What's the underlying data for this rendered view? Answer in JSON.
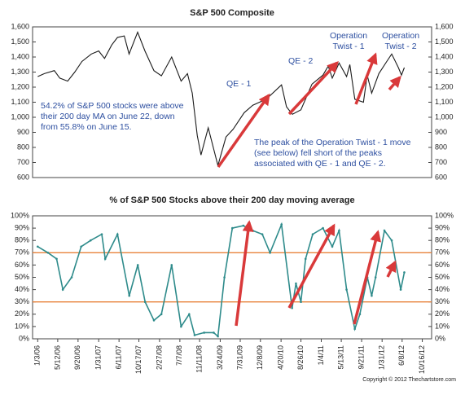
{
  "chart_data": [
    {
      "type": "line",
      "title": "S&P 500 Composite",
      "x": [
        "1/3/06",
        "2/15/06",
        "4/20/06",
        "5/25/06",
        "7/15/06",
        "8/30/06",
        "10/15/06",
        "12/15/06",
        "1/31/07",
        "3/10/07",
        "4/25/07",
        "6/1/07",
        "7/15/07",
        "8/15/07",
        "10/9/07",
        "11/25/07",
        "1/22/08",
        "3/10/08",
        "5/15/08",
        "7/15/08",
        "8/25/08",
        "9/25/08",
        "10/27/08",
        "11/20/08",
        "1/6/09",
        "3/9/09",
        "4/30/09",
        "6/15/09",
        "8/25/09",
        "10/20/09",
        "1/15/10",
        "4/23/10",
        "5/25/10",
        "7/2/10",
        "8/26/10",
        "11/5/10",
        "1/15/11",
        "2/18/11",
        "3/16/11",
        "4/29/11",
        "6/16/11",
        "7/7/11",
        "8/8/11",
        "10/3/11",
        "10/27/11",
        "11/25/11",
        "1/10/12",
        "3/1/12",
        "4/2/12",
        "5/15/12",
        "6/4/12",
        "6/22/12"
      ],
      "series": [
        {
          "name": "S&P 500",
          "color": "#1a1a1a",
          "values": [
            1270,
            1290,
            1310,
            1260,
            1240,
            1300,
            1370,
            1420,
            1440,
            1390,
            1480,
            1530,
            1540,
            1420,
            1565,
            1440,
            1310,
            1275,
            1400,
            1240,
            1290,
            1160,
            880,
            750,
            930,
            680,
            870,
            920,
            1030,
            1080,
            1120,
            1215,
            1070,
            1020,
            1050,
            1220,
            1280,
            1340,
            1260,
            1360,
            1270,
            1350,
            1120,
            1100,
            1280,
            1160,
            1290,
            1370,
            1420,
            1330,
            1280,
            1330
          ]
        }
      ],
      "ylim": [
        600,
        1600
      ],
      "yticks": [
        {
          "value": 600,
          "label": "600"
        },
        {
          "value": 700,
          "label": "700"
        },
        {
          "value": 800,
          "label": "800"
        },
        {
          "value": 900,
          "label": "900"
        },
        {
          "value": 1000,
          "label": "1,000"
        },
        {
          "value": 1100,
          "label": "1,100"
        },
        {
          "value": 1200,
          "label": "1,200"
        },
        {
          "value": 1300,
          "label": "1,300"
        },
        {
          "value": 1400,
          "label": "1,400"
        },
        {
          "value": 1500,
          "label": "1,500"
        },
        {
          "value": 1600,
          "label": "1,600"
        }
      ],
      "xlim": [
        "12/1/05",
        "12/15/12"
      ],
      "annotations": [
        {
          "lines": [
            "QE - 1"
          ]
        },
        {
          "lines": [
            "QE - 2"
          ]
        },
        {
          "lines": [
            "Operation",
            "Twist - 1"
          ]
        },
        {
          "lines": [
            "Operation",
            "Twist - 2"
          ]
        },
        {
          "lines": [
            "54.2% of S&P 500 stocks were above",
            "their 200 day MA on June 22, down",
            "from 55.8% on June 15."
          ]
        },
        {
          "lines": [
            "The peak of the Operation Twist - 1 move",
            "(see below) fell short of the peaks",
            "associated with QE - 1 and QE - 2."
          ]
        }
      ]
    },
    {
      "type": "line",
      "title": "% of S&P 500 Stocks above their 200 day moving average",
      "x": [
        "1/3/06",
        "3/10/06",
        "5/5/06",
        "6/14/06",
        "8/10/06",
        "10/10/06",
        "12/10/06",
        "2/20/07",
        "3/14/07",
        "6/1/07",
        "8/16/07",
        "10/10/07",
        "11/26/07",
        "1/22/08",
        "3/10/08",
        "5/15/08",
        "7/15/08",
        "9/5/08",
        "10/10/08",
        "12/10/08",
        "2/10/09",
        "3/9/09",
        "4/20/09",
        "6/10/09",
        "8/20/09",
        "10/20/09",
        "12/20/09",
        "2/8/10",
        "4/23/10",
        "6/30/10",
        "7/25/10",
        "8/26/10",
        "9/25/10",
        "11/10/10",
        "1/15/11",
        "3/16/11",
        "4/29/11",
        "6/16/11",
        "8/8/11",
        "9/10/11",
        "10/28/11",
        "11/25/11",
        "12/20/11",
        "2/15/12",
        "4/2/12",
        "5/30/12",
        "6/22/12"
      ],
      "series": [
        {
          "name": "% above 200 day MA",
          "color": "#2e8b8b",
          "values": [
            75,
            70,
            65,
            40,
            50,
            75,
            80,
            85,
            65,
            85,
            35,
            60,
            30,
            15,
            20,
            60,
            10,
            20,
            3,
            5,
            5,
            2,
            50,
            90,
            92,
            88,
            85,
            70,
            93,
            25,
            45,
            30,
            65,
            85,
            90,
            75,
            88,
            40,
            8,
            20,
            50,
            35,
            50,
            88,
            80,
            40,
            54
          ]
        }
      ],
      "ylim": [
        0,
        100
      ],
      "yticks": [
        {
          "value": 0,
          "label": "0%"
        },
        {
          "value": 10,
          "label": "10%"
        },
        {
          "value": 20,
          "label": "20%"
        },
        {
          "value": 30,
          "label": "30%"
        },
        {
          "value": 40,
          "label": "40%"
        },
        {
          "value": 50,
          "label": "50%"
        },
        {
          "value": 60,
          "label": "60%"
        },
        {
          "value": 70,
          "label": "70%"
        },
        {
          "value": 80,
          "label": "80%"
        },
        {
          "value": 90,
          "label": "90%"
        },
        {
          "value": 100,
          "label": "100%"
        }
      ],
      "reference_lines": [
        70,
        30
      ],
      "reference_color": "#e8823a",
      "xlim": [
        "12/1/05",
        "12/15/12"
      ],
      "xticks": [
        "1/3/06",
        "5/12/06",
        "9/20/06",
        "1/31/07",
        "6/11/07",
        "10/17/07",
        "2/27/08",
        "7/7/08",
        "11/11/08",
        "3/24/09",
        "7/31/09",
        "12/8/09",
        "4/20/10",
        "8/26/10",
        "1/4/11",
        "5/13/11",
        "9/21/11",
        "1/31/12",
        "6/8/12",
        "10/16/12"
      ]
    }
  ],
  "copyright": "Copyright © 2012 Thechartstore.com"
}
